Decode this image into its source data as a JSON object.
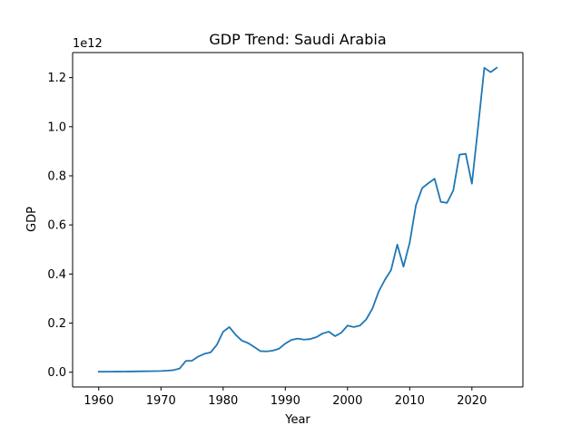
{
  "chart_data": {
    "type": "line",
    "title": "GDP Trend: Saudi Arabia",
    "xlabel": "Year",
    "ylabel": "GDP",
    "y_offset_label": "1e12",
    "xlim": [
      1955.8,
      2028.2
    ],
    "ylim": [
      -60000000000.0,
      1302000000000.0
    ],
    "x_ticks": [
      1960,
      1970,
      1980,
      1990,
      2000,
      2010,
      2020
    ],
    "y_ticks": [
      0.0,
      0.2,
      0.4,
      0.6,
      0.8,
      1.0,
      1.2
    ],
    "y_tick_labels": [
      "0.0",
      "0.2",
      "0.4",
      "0.6",
      "0.8",
      "1.0",
      "1.2"
    ],
    "grid": false,
    "line_color": "#1f77b4",
    "series": [
      {
        "x": [
          1960,
          1961,
          1962,
          1963,
          1964,
          1965,
          1966,
          1967,
          1968,
          1969,
          1970,
          1971,
          1972,
          1973,
          1974,
          1975,
          1976,
          1977,
          1978,
          1979,
          1980,
          1981,
          1982,
          1983,
          1984,
          1985,
          1986,
          1987,
          1988,
          1989,
          1990,
          1991,
          1992,
          1993,
          1994,
          1995,
          1996,
          1997,
          1998,
          1999,
          2000,
          2001,
          2002,
          2003,
          2004,
          2005,
          2006,
          2007,
          2008,
          2009,
          2010,
          2011,
          2012,
          2013,
          2014,
          2015,
          2016,
          2017,
          2018,
          2019,
          2020,
          2021,
          2022,
          2023,
          2024
        ],
        "values": [
          2000000000.0,
          2200000000.0,
          2400000000.0,
          2600000000.0,
          2800000000.0,
          3000000000.0,
          3400000000.0,
          3800000000.0,
          4200000000.0,
          4600000000.0,
          5200000000.0,
          6500000000.0,
          8500000000.0,
          15000000000.0,
          46000000000.0,
          47000000000.0,
          64000000000.0,
          75000000000.0,
          81000000000.0,
          112000000000.0,
          165000000000.0,
          184000000000.0,
          153000000000.0,
          129000000000.0,
          119000000000.0,
          103000000000.0,
          86000000000.0,
          85000000000.0,
          88000000000.0,
          96000000000.0,
          117000000000.0,
          132000000000.0,
          137000000000.0,
          133000000000.0,
          135000000000.0,
          143000000000.0,
          158000000000.0,
          165000000000.0,
          147000000000.0,
          161000000000.0,
          190000000000.0,
          184000000000.0,
          190000000000.0,
          215000000000.0,
          259000000000.0,
          328000000000.0,
          376000000000.0,
          416000000000.0,
          520000000000.0,
          430000000000.0,
          528000000000.0,
          680000000000.0,
          750000000000.0,
          770000000000.0,
          788000000000.0,
          694000000000.0,
          690000000000.0,
          740000000000.0,
          886000000000.0,
          890000000000.0,
          768000000000.0,
          1000000000000.0,
          1240000000000.0,
          1222000000000.0,
          1240000000000.0
        ]
      }
    ]
  }
}
